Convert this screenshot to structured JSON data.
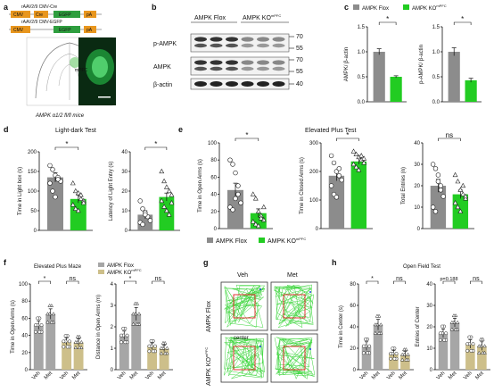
{
  "colors": {
    "flox": "#8c8c8c",
    "ko": "#22cc22",
    "flox_f": "#a6a6a6",
    "ko_f": "#cdbf8a",
    "map": "#d0d0d0",
    "fluor": "#1b7a2f"
  },
  "panel_a": {
    "letter": "a",
    "construct1": {
      "label": "rAAV2/9 CMV-Cre",
      "p": "CMV",
      "g": "Cre",
      "f": "EGFP",
      "end": "pA"
    },
    "construct2": {
      "label": "rAAV2/9 CMV-EGFP",
      "p": "CMV",
      "f": "EGFP",
      "end": "pA"
    },
    "region": "mPFC",
    "caption": "AMPK α1/2 fl/fl mice"
  },
  "panel_b": {
    "letter": "b",
    "flox": "AMPK Flox",
    "ko": "AMPK KO",
    "ko_sup": "mPFC",
    "rows": [
      {
        "name": "p-AMPK",
        "marks": [
          "70",
          "55"
        ]
      },
      {
        "name": "AMPK",
        "marks": [
          "70",
          "55"
        ]
      },
      {
        "name": "β-actin",
        "marks": [
          "40"
        ]
      }
    ]
  },
  "panel_c": {
    "letter": "c",
    "legend": {
      "flox": "AMPK Flox",
      "ko": "AMPK KO",
      "ko_sup": "mPFC"
    },
    "charts": [
      {
        "ylabel": "AMPK/ β-actin",
        "yticks": [
          "0.0",
          "0.5",
          "1.0",
          "1.5"
        ],
        "ymax": 1.5,
        "flox": 1.0,
        "flox_err": 0.06,
        "ko": 0.5,
        "ko_err": 0.02,
        "sig": "*"
      },
      {
        "ylabel": "p-AMPK/ β-actin",
        "yticks": [
          "0.0",
          "0.5",
          "1.0",
          "1.5"
        ],
        "ymax": 1.5,
        "flox": 1.0,
        "flox_err": 0.08,
        "ko": 0.43,
        "ko_err": 0.04,
        "sig": "*"
      }
    ]
  },
  "panel_d": {
    "letter": "d",
    "title": "Light-dark Test",
    "charts": [
      {
        "ylabel": "Time in Light box (s)",
        "yticks": [
          "0",
          "50",
          "100",
          "150",
          "200"
        ],
        "ymax": 200,
        "flox": 135,
        "flox_err": 12,
        "ko": 80,
        "ko_err": 10,
        "sig": "*",
        "flox_pts": [
          165,
          155,
          140,
          135,
          125,
          120,
          100,
          85,
          130
        ],
        "ko_pts": [
          120,
          100,
          95,
          80,
          75,
          65,
          55,
          50,
          90,
          70
        ]
      },
      {
        "ylabel": "Latency of Light Entry (s)",
        "yticks": [
          "0",
          "10",
          "20",
          "30",
          "40"
        ],
        "ymax": 40,
        "flox": 8,
        "flox_err": 2,
        "ko": 17,
        "ko_err": 2,
        "sig": "*",
        "flox_pts": [
          15,
          11,
          9,
          7,
          5,
          4,
          3,
          8
        ],
        "ko_pts": [
          30,
          25,
          22,
          20,
          18,
          15,
          12,
          10,
          8,
          14
        ]
      }
    ]
  },
  "panel_e": {
    "letter": "e",
    "title": "Elevated Plus Test",
    "legend": {
      "flox": "AMPK Flox",
      "ko": "AMPK KO",
      "ko_sup": "mPFC"
    },
    "charts": [
      {
        "ylabel": "Time in Open Arms (s)",
        "yticks": [
          "0",
          "20",
          "40",
          "60",
          "80",
          "100"
        ],
        "ymax": 100,
        "flox": 45,
        "flox_err": 8,
        "ko": 18,
        "ko_err": 5,
        "sig": "*",
        "flox_pts": [
          80,
          75,
          65,
          40,
          30,
          25,
          22,
          35,
          50
        ],
        "ko_pts": [
          40,
          35,
          20,
          15,
          10,
          8,
          5,
          3,
          12,
          25
        ]
      },
      {
        "ylabel": "Time in Closed Arms (s)",
        "yticks": [
          "0",
          "100",
          "200",
          "300"
        ],
        "ymax": 300,
        "flox": 185,
        "flox_err": 18,
        "ko": 235,
        "ko_err": 10,
        "sig": "*",
        "flox_pts": [
          255,
          230,
          200,
          185,
          170,
          150,
          120,
          110,
          210
        ],
        "ko_pts": [
          270,
          260,
          250,
          240,
          230,
          225,
          215,
          205,
          255,
          245
        ]
      },
      {
        "ylabel": "Total Entries (n)",
        "yticks": [
          "0",
          "10",
          "20",
          "30",
          "40"
        ],
        "ymax": 40,
        "flox": 20,
        "flox_err": 3,
        "ko": 16,
        "ko_err": 2,
        "sig": "ns",
        "flox_pts": [
          30,
          28,
          25,
          20,
          15,
          10,
          8,
          22,
          18
        ],
        "ko_pts": [
          25,
          22,
          18,
          16,
          14,
          12,
          10,
          8,
          20,
          15
        ]
      }
    ]
  },
  "panel_f": {
    "letter": "f",
    "title": "Elevated Plus Maze",
    "legend": {
      "flox": "AMPK Flox",
      "ko": "AMPK KO",
      "ko_sup": "mPFC"
    },
    "groups": [
      "Veh",
      "Met",
      "Veh",
      "Met"
    ],
    "charts": [
      {
        "ylabel": "Time in Open Arms (s)",
        "yticks": [
          "0",
          "20",
          "40",
          "60",
          "80",
          "100"
        ],
        "ymax": 100,
        "bars": [
          52,
          65,
          33,
          32
        ],
        "errs": [
          5,
          6,
          4,
          4
        ],
        "sig1": "*",
        "sig2": "ns"
      },
      {
        "ylabel": "Distance in Open Arms (m)",
        "yticks": [
          "0",
          "1",
          "2",
          "3",
          "4"
        ],
        "ymax": 4,
        "bars": [
          1.6,
          2.6,
          1.1,
          1.0
        ],
        "errs": [
          0.2,
          0.3,
          0.15,
          0.15
        ],
        "sig1": "*",
        "sig2": "ns"
      }
    ]
  },
  "panel_g": {
    "letter": "g",
    "cols": [
      "Veh",
      "Met"
    ],
    "row1": "AMPK Flox",
    "row2": "AMPK KO",
    "row2_sup": "mPFC",
    "center": "center"
  },
  "panel_h": {
    "letter": "h",
    "title": "Open Field Test",
    "groups": [
      "Veh",
      "Met",
      "Veh",
      "Met"
    ],
    "charts": [
      {
        "ylabel": "Time in Center (s)",
        "yticks": [
          "0",
          "20",
          "40",
          "60",
          "80"
        ],
        "ymax": 80,
        "bars": [
          22,
          42,
          15,
          14
        ],
        "errs": [
          4,
          5,
          3,
          3
        ],
        "sig1": "*",
        "sig2": "ns"
      },
      {
        "ylabel": "Entries of Center",
        "yticks": [
          "0",
          "10",
          "20",
          "30",
          "40"
        ],
        "ymax": 40,
        "bars": [
          17,
          22,
          12,
          11
        ],
        "errs": [
          2,
          2,
          2,
          2
        ],
        "sig1": "p=0.188",
        "sig2": "ns"
      }
    ]
  }
}
